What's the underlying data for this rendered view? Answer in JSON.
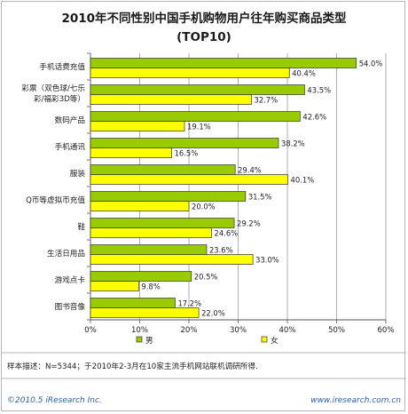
{
  "chart_data": {
    "type": "bar",
    "orientation": "horizontal",
    "title": "2010年不同性别中国手机购物用户往年购买商品类型",
    "subtitle": "(TOP10)",
    "categories": [
      [
        "手机话费充值"
      ],
      [
        "彩票（双色球/七乐",
        "彩/福彩3D等）"
      ],
      [
        "数码产品"
      ],
      [
        "手机通讯"
      ],
      [
        "服装"
      ],
      [
        "Q币等虚拟币充值"
      ],
      [
        "鞋"
      ],
      [
        "生活日用品"
      ],
      [
        "游戏点卡"
      ],
      [
        "图书音像"
      ]
    ],
    "series": [
      {
        "name": "男",
        "color": "#99cc00",
        "values": [
          54.0,
          43.5,
          42.6,
          38.2,
          29.4,
          31.5,
          29.2,
          23.6,
          20.5,
          17.2
        ]
      },
      {
        "name": "女",
        "color": "#ffff00",
        "values": [
          40.4,
          32.7,
          19.1,
          16.5,
          40.1,
          20.0,
          24.6,
          33.0,
          9.8,
          22.0
        ]
      }
    ],
    "xlim": [
      0,
      60
    ],
    "ticks": [
      "0%",
      "10%",
      "20%",
      "30%",
      "40%",
      "50%",
      "60%"
    ],
    "value_suffix": "%",
    "grid": true,
    "legend_position": "bottom"
  },
  "note": "样本描述：N=5344；于2010年2-3月在10家主流手机网站联机调研所得.",
  "footer": {
    "left": "©2010.5 iResearch Inc.",
    "right": "www.iresearch.com.cn"
  }
}
